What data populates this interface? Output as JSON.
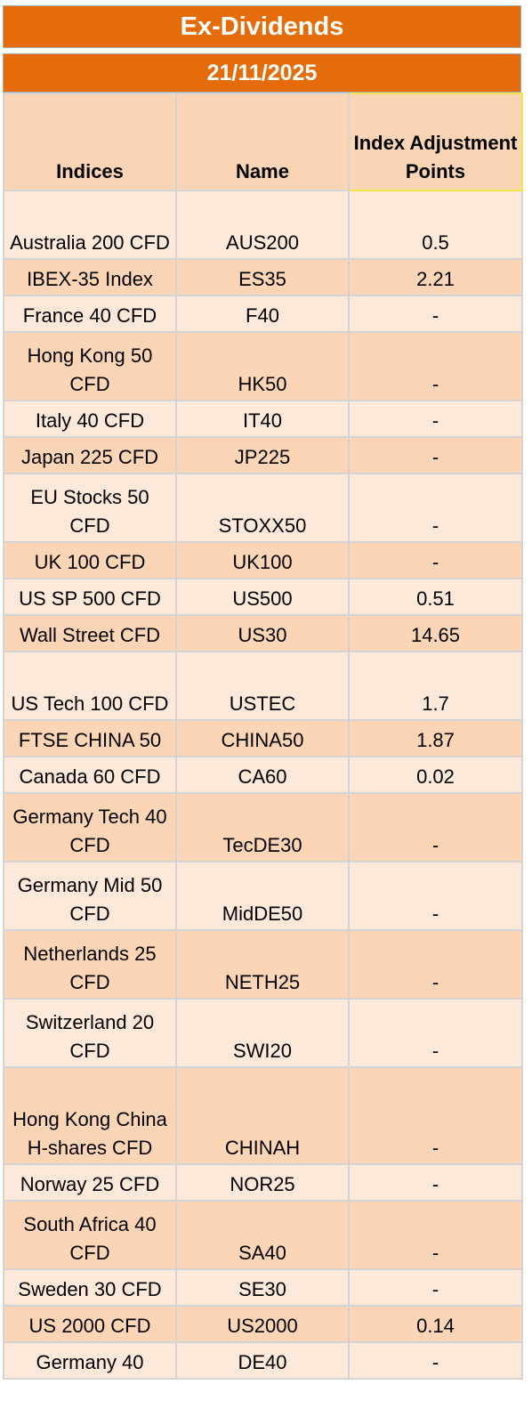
{
  "title": "Ex-Dividends",
  "date": "21/11/2025",
  "headers": {
    "indices": "Indices",
    "name": "Name",
    "points": "Index Adjustment Points"
  },
  "rows": [
    {
      "index": "Australia 200 CFD",
      "name": "AUS200",
      "points": "0.5"
    },
    {
      "index": "IBEX-35 Index",
      "name": "ES35",
      "points": "2.21"
    },
    {
      "index": "France 40 CFD",
      "name": "F40",
      "points": "-"
    },
    {
      "index": "Hong Kong 50 CFD",
      "name": "HK50",
      "points": "-"
    },
    {
      "index": "Italy 40 CFD",
      "name": "IT40",
      "points": "-"
    },
    {
      "index": "Japan 225 CFD",
      "name": "JP225",
      "points": "-"
    },
    {
      "index": "EU Stocks 50 CFD",
      "name": "STOXX50",
      "points": "-"
    },
    {
      "index": "UK 100 CFD",
      "name": "UK100",
      "points": "-"
    },
    {
      "index": "US SP 500 CFD",
      "name": "US500",
      "points": "0.51"
    },
    {
      "index": "Wall Street CFD",
      "name": "US30",
      "points": "14.65"
    },
    {
      "index": "US Tech 100 CFD",
      "name": "USTEC",
      "points": "1.7"
    },
    {
      "index": "FTSE CHINA 50",
      "name": "CHINA50",
      "points": "1.87"
    },
    {
      "index": "Canada 60 CFD",
      "name": "CA60",
      "points": "0.02"
    },
    {
      "index": "Germany Tech 40 CFD",
      "name": "TecDE30",
      "points": "-"
    },
    {
      "index": "Germany Mid 50 CFD",
      "name": "MidDE50",
      "points": "-"
    },
    {
      "index": "Netherlands 25 CFD",
      "name": "NETH25",
      "points": "-"
    },
    {
      "index": "Switzerland 20 CFD",
      "name": "SWI20",
      "points": "-"
    },
    {
      "index": "Hong Kong China H-shares CFD",
      "name": "CHINAH",
      "points": "-"
    },
    {
      "index": "Norway 25 CFD",
      "name": "NOR25",
      "points": "-"
    },
    {
      "index": "South Africa 40 CFD",
      "name": "SA40",
      "points": "-"
    },
    {
      "index": "Sweden 30 CFD",
      "name": "SE30",
      "points": "-"
    },
    {
      "index": "US 2000 CFD",
      "name": "US2000",
      "points": "0.14"
    },
    {
      "index": "Germany 40",
      "name": "DE40",
      "points": "-"
    }
  ],
  "colors": {
    "header_orange": "#E46C0A",
    "row_light": "#FDE9DA",
    "row_dark": "#FBD5B5",
    "grid": "#D4D4D4",
    "highlight_border": "#F2E44B"
  }
}
